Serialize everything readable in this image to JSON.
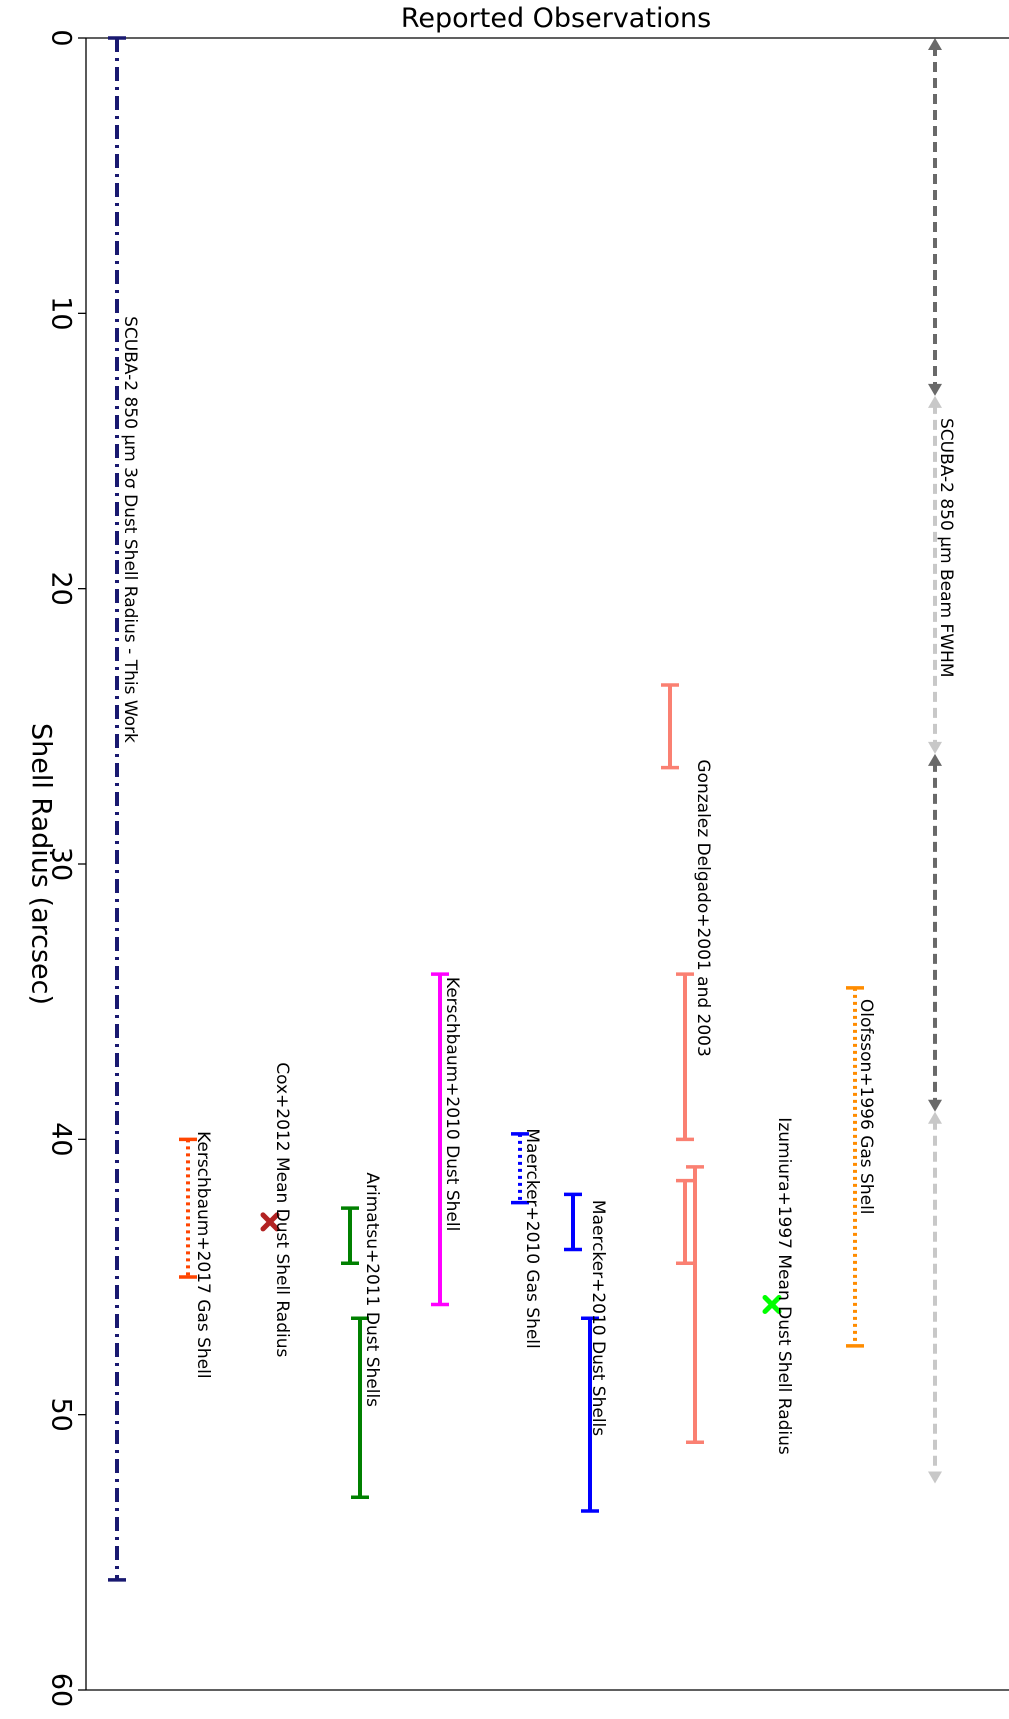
{
  "chart_data": {
    "type": "scatter",
    "title": "Reported Observations",
    "ylabel": "Shell Radius (arcsec)",
    "xlabel": "",
    "ylim": [
      0,
      60
    ],
    "y_inverted": true,
    "y_ticks": [
      "0",
      "10",
      "20",
      "30",
      "40",
      "50",
      "60"
    ],
    "grid": false,
    "series": [
      {
        "name": "SCUBA-2 850 μm 3σ Dust Shell Radius - This Work",
        "x": 1,
        "lo": 0,
        "hi": 56,
        "style": "dashdot",
        "color": "#191970",
        "cap": "bar"
      },
      {
        "name": "Kerschbaum+2017 Gas Shell",
        "x": 2,
        "lo": 40,
        "hi": 45,
        "style": "dotted",
        "color": "#ff4500",
        "cap": "bar"
      },
      {
        "name": "Cox+2012 Mean Dust Shell Radius",
        "x": 3,
        "value": 43,
        "marker": "x",
        "color": "#b22222"
      },
      {
        "name": "Arimatsu+2011 Dust Shells",
        "x": 4,
        "ranges": [
          [
            42.5,
            44.5
          ],
          [
            46.5,
            53
          ]
        ],
        "style": "solid",
        "color": "#008000",
        "cap": "bar"
      },
      {
        "name": "Kerschbaum+2010 Dust Shell",
        "x": 5,
        "lo": 34,
        "hi": 46,
        "style": "solid",
        "color": "#ff00ff",
        "cap": "bar"
      },
      {
        "name": "Maercker+2010 Gas Shell",
        "x": 6,
        "lo": 39.8,
        "hi": 42.3,
        "style": "dotted",
        "color": "#0000ff",
        "cap": "bar"
      },
      {
        "name": "Maercker+2010 Dust Shells",
        "x": 7,
        "ranges": [
          [
            42,
            44
          ],
          [
            46.5,
            53.5
          ]
        ],
        "style": "solid",
        "color": "#0000ff",
        "cap": "bar"
      },
      {
        "name": "Gonzalez Delgado+2001 and 2003",
        "x": 8,
        "ranges": [
          [
            23.5,
            26.5
          ],
          [
            34,
            40
          ],
          [
            41.5,
            44.5
          ],
          [
            41,
            51
          ]
        ],
        "style": "solid",
        "color": "#fa8072",
        "cap": "bar"
      },
      {
        "name": "Izumiura+1997 Mean Dust Shell Radius",
        "x": 9,
        "value": 46,
        "marker": "x",
        "color": "#00ff00"
      },
      {
        "name": "Olofsson+1996 Gas Shell",
        "x": 10,
        "lo": 34.5,
        "hi": 47.5,
        "style": "dotted",
        "color": "#ff8c00",
        "cap": "bar"
      },
      {
        "name": "SCUBA-2 850 μm Beam FWHM",
        "x": 11,
        "arrows": [
          [
            0,
            13
          ],
          [
            13,
            26
          ],
          [
            26,
            39
          ],
          [
            39,
            52.5
          ]
        ],
        "arrow_colors": [
          "#696969",
          "#c8c8c8",
          "#696969",
          "#c8c8c8"
        ],
        "style": "dashed",
        "cap": "arrow"
      }
    ]
  }
}
